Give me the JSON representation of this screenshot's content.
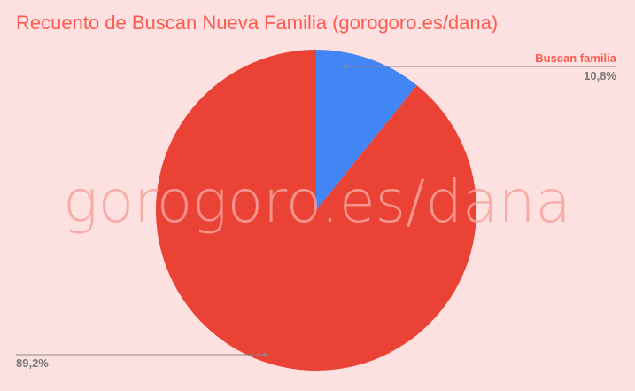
{
  "chart_data": {
    "type": "pie",
    "title": "Recuento de Buscan Nueva Familia (gorogoro.es/dana)",
    "watermark": "gorogoro.es/dana",
    "slices": [
      {
        "label": "Buscan familia",
        "value": 10.8,
        "value_label": "10,8%",
        "color": "#4285f4"
      },
      {
        "label": "",
        "value": 89.2,
        "value_label": "89,2%",
        "color": "#ea4335"
      }
    ],
    "legend": "none"
  },
  "colors": {
    "background": "#fde0e0",
    "title": "#ff5a4f",
    "watermark": "#f6a29c",
    "label_name": "#ff5a4f",
    "label_value": "#7a7a7a",
    "leader_line": "#8a8a8a"
  }
}
